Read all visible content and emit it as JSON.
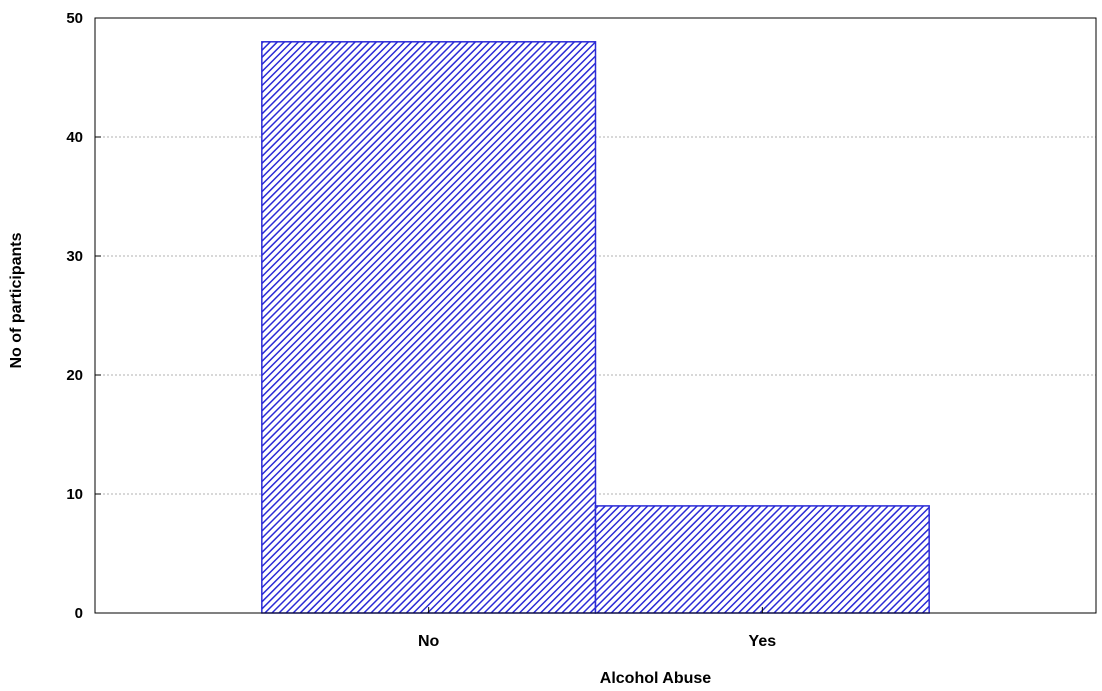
{
  "chart_data": {
    "type": "bar",
    "title": "",
    "xlabel": "Alcohol Abuse",
    "ylabel": "No of participants",
    "categories": [
      "No",
      "Yes"
    ],
    "values": [
      48,
      9
    ],
    "ylim": [
      0,
      50
    ],
    "yticks": [
      0,
      10,
      20,
      30,
      40,
      50
    ],
    "grid": true,
    "bar_color": "#2b2bd6",
    "bar_pattern": "diagonal-hatch"
  }
}
